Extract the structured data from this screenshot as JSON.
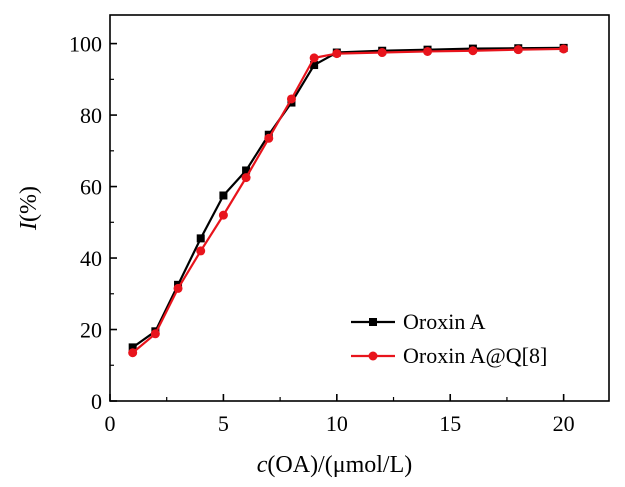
{
  "chart_data": {
    "type": "line",
    "title": "",
    "xlabel": {
      "italic": "c",
      "rest": "(OA)/(μmol/L)"
    },
    "ylabel": {
      "italic": "I",
      "rest": "(%)"
    },
    "xlim": [
      0,
      22
    ],
    "ylim": [
      0,
      108
    ],
    "x_ticks": [
      0,
      5,
      10,
      15,
      20
    ],
    "y_ticks": [
      0,
      20,
      40,
      60,
      80,
      100
    ],
    "grid": false,
    "legend_position": "bottom-right",
    "series": [
      {
        "name": "Oroxin A",
        "color": "#000000",
        "marker": "square",
        "x": [
          1,
          2,
          3,
          4,
          5,
          6,
          7,
          8,
          9,
          10,
          12,
          14,
          16,
          18,
          20
        ],
        "y": [
          15.0,
          19.5,
          32.5,
          45.5,
          57.5,
          64.5,
          74.5,
          83.5,
          94.0,
          97.5,
          98.0,
          98.3,
          98.6,
          98.7,
          98.8
        ]
      },
      {
        "name": "Oroxin A@Q[8]",
        "color": "#e8141c",
        "marker": "circle",
        "x": [
          1,
          2,
          3,
          4,
          5,
          6,
          7,
          8,
          9,
          10,
          12,
          14,
          16,
          18,
          20
        ],
        "y": [
          13.5,
          18.8,
          31.5,
          42.0,
          52.0,
          62.5,
          73.5,
          84.5,
          96.0,
          97.2,
          97.5,
          97.8,
          98.0,
          98.3,
          98.5
        ]
      }
    ]
  }
}
